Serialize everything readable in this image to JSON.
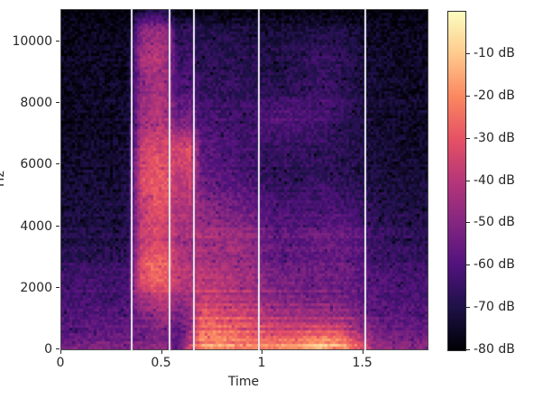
{
  "figure": {
    "xlabel": "Time",
    "ylabel": "Hz",
    "background_color": "#ffffff",
    "text_color": "#262626"
  },
  "chart_data": {
    "type": "heatmap",
    "subtype": "audio-spectrogram",
    "title": "",
    "xlabel": "Time",
    "ylabel": "Hz",
    "xlim": [
      0,
      1.82
    ],
    "ylim": [
      0,
      11025
    ],
    "grid": "off",
    "x_tick_values": [
      0,
      0.5,
      1,
      1.5
    ],
    "x_tick_labels": [
      "0",
      "0.5",
      "1",
      "1.5"
    ],
    "y_tick_values": [
      0,
      2000,
      4000,
      6000,
      8000,
      10000
    ],
    "y_tick_labels": [
      "0",
      "2000",
      "4000",
      "6000",
      "8000",
      "10000"
    ],
    "colorbar": {
      "colormap": "magma",
      "range_db": [
        0,
        -80
      ],
      "tick_values_db": [
        -10,
        -20,
        -30,
        -40,
        -50,
        -60,
        -70,
        -80
      ],
      "tick_labels": [
        "-10 dB",
        "-20 dB",
        "-30 dB",
        "-40 dB",
        "-50 dB",
        "-60 dB",
        "-70 dB",
        "-80 dB"
      ],
      "colormap_stops": [
        {
          "pos": 0.0,
          "color": "#000004"
        },
        {
          "pos": 0.125,
          "color": "#1d1147"
        },
        {
          "pos": 0.25,
          "color": "#51127c"
        },
        {
          "pos": 0.375,
          "color": "#822681"
        },
        {
          "pos": 0.5,
          "color": "#b63679"
        },
        {
          "pos": 0.625,
          "color": "#e65164"
        },
        {
          "pos": 0.75,
          "color": "#fb8861"
        },
        {
          "pos": 0.875,
          "color": "#fec98d"
        },
        {
          "pos": 1.0,
          "color": "#fcfdbf"
        }
      ]
    },
    "boundary_lines": {
      "color": "#e9e9f0",
      "times": [
        0.35,
        0.54,
        0.66,
        0.98,
        1.51
      ]
    },
    "spectrogram_grid": {
      "comment": "coarse dB energy grid read from the image; columns_db[i] is the spectrum at times[i], ordered bottom(low freq) to top(high freq) over freqs_hz",
      "times": [
        0.05,
        0.15,
        0.25,
        0.33,
        0.4,
        0.47,
        0.53,
        0.58,
        0.64,
        0.7,
        0.78,
        0.86,
        0.94,
        1.02,
        1.1,
        1.2,
        1.3,
        1.4,
        1.48,
        1.56,
        1.66,
        1.76
      ],
      "freqs_hz": [
        100,
        300,
        600,
        1000,
        1500,
        2100,
        2800,
        3600,
        4500,
        5500,
        6500,
        7500,
        8500,
        9500,
        10400,
        11000
      ],
      "columns_db": [
        [
          -52,
          -55,
          -58,
          -60,
          -62,
          -63,
          -66,
          -70,
          -72,
          -74,
          -75,
          -76,
          -75,
          -76,
          -77,
          -80
        ],
        [
          -50,
          -54,
          -57,
          -59,
          -61,
          -62,
          -65,
          -69,
          -72,
          -73,
          -74,
          -75,
          -74,
          -75,
          -76,
          -80
        ],
        [
          -52,
          -55,
          -57,
          -60,
          -62,
          -64,
          -66,
          -70,
          -72,
          -74,
          -75,
          -75,
          -75,
          -76,
          -77,
          -80
        ],
        [
          -50,
          -54,
          -56,
          -58,
          -60,
          -61,
          -64,
          -68,
          -70,
          -72,
          -73,
          -74,
          -74,
          -75,
          -76,
          -80
        ],
        [
          -50,
          -52,
          -53,
          -52,
          -46,
          -33,
          -30,
          -38,
          -36,
          -33,
          -36,
          -44,
          -46,
          -44,
          -50,
          -72
        ],
        [
          -48,
          -50,
          -50,
          -48,
          -42,
          -27,
          -25,
          -34,
          -31,
          -28,
          -32,
          -40,
          -42,
          -40,
          -46,
          -70
        ],
        [
          -50,
          -50,
          -50,
          -46,
          -40,
          -30,
          -28,
          -36,
          -34,
          -30,
          -34,
          -42,
          -45,
          -44,
          -48,
          -72
        ],
        [
          -58,
          -60,
          -58,
          -54,
          -48,
          -38,
          -40,
          -42,
          -42,
          -40,
          -34,
          -55,
          -62,
          -65,
          -68,
          -80
        ],
        [
          -35,
          -40,
          -46,
          -48,
          -45,
          -40,
          -42,
          -44,
          -42,
          -36,
          -30,
          -52,
          -60,
          -64,
          -66,
          -80
        ],
        [
          -18,
          -20,
          -22,
          -28,
          -35,
          -38,
          -42,
          -42,
          -48,
          -55,
          -58,
          -62,
          -66,
          -68,
          -70,
          -80
        ],
        [
          -18,
          -20,
          -24,
          -30,
          -36,
          -40,
          -44,
          -44,
          -50,
          -58,
          -60,
          -62,
          -66,
          -68,
          -70,
          -80
        ],
        [
          -20,
          -22,
          -26,
          -32,
          -38,
          -42,
          -45,
          -44,
          -52,
          -60,
          -62,
          -63,
          -66,
          -68,
          -70,
          -80
        ],
        [
          -20,
          -24,
          -28,
          -34,
          -40,
          -44,
          -46,
          -46,
          -54,
          -62,
          -64,
          -63,
          -67,
          -69,
          -71,
          -80
        ],
        [
          -22,
          -26,
          -32,
          -40,
          -46,
          -50,
          -54,
          -55,
          -60,
          -66,
          -66,
          -60,
          -68,
          -70,
          -72,
          -80
        ],
        [
          -20,
          -25,
          -33,
          -42,
          -48,
          -52,
          -56,
          -57,
          -62,
          -67,
          -66,
          -59,
          -68,
          -70,
          -72,
          -80
        ],
        [
          -16,
          -22,
          -32,
          -42,
          -50,
          -54,
          -56,
          -56,
          -62,
          -67,
          -66,
          -60,
          -66,
          -68,
          -71,
          -80
        ],
        [
          -12,
          -18,
          -30,
          -42,
          -50,
          -54,
          -55,
          -54,
          -60,
          -66,
          -67,
          -62,
          -63,
          -65,
          -70,
          -80
        ],
        [
          -18,
          -24,
          -34,
          -44,
          -52,
          -55,
          -55,
          -55,
          -62,
          -68,
          -68,
          -66,
          -66,
          -68,
          -71,
          -80
        ],
        [
          -30,
          -36,
          -44,
          -50,
          -55,
          -58,
          -58,
          -58,
          -64,
          -70,
          -70,
          -70,
          -70,
          -71,
          -73,
          -80
        ],
        [
          -45,
          -48,
          -52,
          -55,
          -58,
          -60,
          -62,
          -64,
          -68,
          -72,
          -72,
          -73,
          -73,
          -74,
          -75,
          -80
        ],
        [
          -48,
          -50,
          -54,
          -57,
          -60,
          -62,
          -64,
          -66,
          -70,
          -73,
          -73,
          -74,
          -74,
          -75,
          -76,
          -80
        ],
        [
          -50,
          -52,
          -55,
          -58,
          -60,
          -62,
          -65,
          -67,
          -70,
          -73,
          -74,
          -75,
          -74,
          -75,
          -76,
          -80
        ]
      ],
      "texture": {
        "noise_db": 4.5,
        "harmonic_spacing_hz": 145,
        "harmonic_depth_db": 5,
        "harmonic_time_range": [
          0.63,
          1.47
        ],
        "harmonic_max_freq_hz": 3300
      }
    }
  }
}
